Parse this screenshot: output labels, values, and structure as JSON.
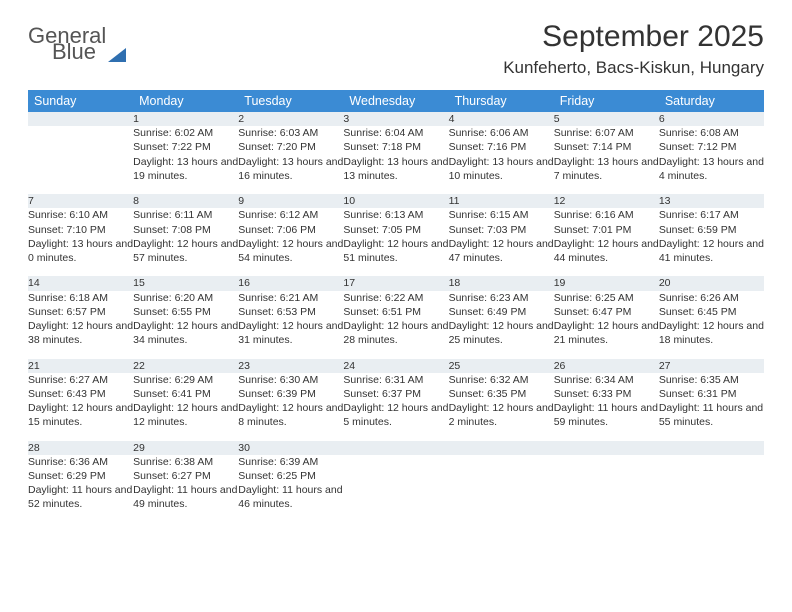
{
  "logo": {
    "line1": "General",
    "line2": "Blue"
  },
  "title": "September 2025",
  "location": "Kunfeherto, Bacs-Kiskun, Hungary",
  "colors": {
    "header_bg": "#3b8bd4",
    "header_text": "#ffffff",
    "daynum_bg": "#e9eef2",
    "daynum_text": "#5b6b78",
    "border": "#b9c5cf",
    "body_text": "#333333",
    "logo_gray": "#555555",
    "logo_blue": "#3b7fc4"
  },
  "weekdays": [
    "Sunday",
    "Monday",
    "Tuesday",
    "Wednesday",
    "Thursday",
    "Friday",
    "Saturday"
  ],
  "weeks": [
    {
      "nums": [
        "",
        "1",
        "2",
        "3",
        "4",
        "5",
        "6"
      ],
      "cells": [
        {
          "sunrise": "",
          "sunset": "",
          "daylight": ""
        },
        {
          "sunrise": "Sunrise: 6:02 AM",
          "sunset": "Sunset: 7:22 PM",
          "daylight": "Daylight: 13 hours and 19 minutes."
        },
        {
          "sunrise": "Sunrise: 6:03 AM",
          "sunset": "Sunset: 7:20 PM",
          "daylight": "Daylight: 13 hours and 16 minutes."
        },
        {
          "sunrise": "Sunrise: 6:04 AM",
          "sunset": "Sunset: 7:18 PM",
          "daylight": "Daylight: 13 hours and 13 minutes."
        },
        {
          "sunrise": "Sunrise: 6:06 AM",
          "sunset": "Sunset: 7:16 PM",
          "daylight": "Daylight: 13 hours and 10 minutes."
        },
        {
          "sunrise": "Sunrise: 6:07 AM",
          "sunset": "Sunset: 7:14 PM",
          "daylight": "Daylight: 13 hours and 7 minutes."
        },
        {
          "sunrise": "Sunrise: 6:08 AM",
          "sunset": "Sunset: 7:12 PM",
          "daylight": "Daylight: 13 hours and 4 minutes."
        }
      ]
    },
    {
      "nums": [
        "7",
        "8",
        "9",
        "10",
        "11",
        "12",
        "13"
      ],
      "cells": [
        {
          "sunrise": "Sunrise: 6:10 AM",
          "sunset": "Sunset: 7:10 PM",
          "daylight": "Daylight: 13 hours and 0 minutes."
        },
        {
          "sunrise": "Sunrise: 6:11 AM",
          "sunset": "Sunset: 7:08 PM",
          "daylight": "Daylight: 12 hours and 57 minutes."
        },
        {
          "sunrise": "Sunrise: 6:12 AM",
          "sunset": "Sunset: 7:06 PM",
          "daylight": "Daylight: 12 hours and 54 minutes."
        },
        {
          "sunrise": "Sunrise: 6:13 AM",
          "sunset": "Sunset: 7:05 PM",
          "daylight": "Daylight: 12 hours and 51 minutes."
        },
        {
          "sunrise": "Sunrise: 6:15 AM",
          "sunset": "Sunset: 7:03 PM",
          "daylight": "Daylight: 12 hours and 47 minutes."
        },
        {
          "sunrise": "Sunrise: 6:16 AM",
          "sunset": "Sunset: 7:01 PM",
          "daylight": "Daylight: 12 hours and 44 minutes."
        },
        {
          "sunrise": "Sunrise: 6:17 AM",
          "sunset": "Sunset: 6:59 PM",
          "daylight": "Daylight: 12 hours and 41 minutes."
        }
      ]
    },
    {
      "nums": [
        "14",
        "15",
        "16",
        "17",
        "18",
        "19",
        "20"
      ],
      "cells": [
        {
          "sunrise": "Sunrise: 6:18 AM",
          "sunset": "Sunset: 6:57 PM",
          "daylight": "Daylight: 12 hours and 38 minutes."
        },
        {
          "sunrise": "Sunrise: 6:20 AM",
          "sunset": "Sunset: 6:55 PM",
          "daylight": "Daylight: 12 hours and 34 minutes."
        },
        {
          "sunrise": "Sunrise: 6:21 AM",
          "sunset": "Sunset: 6:53 PM",
          "daylight": "Daylight: 12 hours and 31 minutes."
        },
        {
          "sunrise": "Sunrise: 6:22 AM",
          "sunset": "Sunset: 6:51 PM",
          "daylight": "Daylight: 12 hours and 28 minutes."
        },
        {
          "sunrise": "Sunrise: 6:23 AM",
          "sunset": "Sunset: 6:49 PM",
          "daylight": "Daylight: 12 hours and 25 minutes."
        },
        {
          "sunrise": "Sunrise: 6:25 AM",
          "sunset": "Sunset: 6:47 PM",
          "daylight": "Daylight: 12 hours and 21 minutes."
        },
        {
          "sunrise": "Sunrise: 6:26 AM",
          "sunset": "Sunset: 6:45 PM",
          "daylight": "Daylight: 12 hours and 18 minutes."
        }
      ]
    },
    {
      "nums": [
        "21",
        "22",
        "23",
        "24",
        "25",
        "26",
        "27"
      ],
      "cells": [
        {
          "sunrise": "Sunrise: 6:27 AM",
          "sunset": "Sunset: 6:43 PM",
          "daylight": "Daylight: 12 hours and 15 minutes."
        },
        {
          "sunrise": "Sunrise: 6:29 AM",
          "sunset": "Sunset: 6:41 PM",
          "daylight": "Daylight: 12 hours and 12 minutes."
        },
        {
          "sunrise": "Sunrise: 6:30 AM",
          "sunset": "Sunset: 6:39 PM",
          "daylight": "Daylight: 12 hours and 8 minutes."
        },
        {
          "sunrise": "Sunrise: 6:31 AM",
          "sunset": "Sunset: 6:37 PM",
          "daylight": "Daylight: 12 hours and 5 minutes."
        },
        {
          "sunrise": "Sunrise: 6:32 AM",
          "sunset": "Sunset: 6:35 PM",
          "daylight": "Daylight: 12 hours and 2 minutes."
        },
        {
          "sunrise": "Sunrise: 6:34 AM",
          "sunset": "Sunset: 6:33 PM",
          "daylight": "Daylight: 11 hours and 59 minutes."
        },
        {
          "sunrise": "Sunrise: 6:35 AM",
          "sunset": "Sunset: 6:31 PM",
          "daylight": "Daylight: 11 hours and 55 minutes."
        }
      ]
    },
    {
      "nums": [
        "28",
        "29",
        "30",
        "",
        "",
        "",
        ""
      ],
      "cells": [
        {
          "sunrise": "Sunrise: 6:36 AM",
          "sunset": "Sunset: 6:29 PM",
          "daylight": "Daylight: 11 hours and 52 minutes."
        },
        {
          "sunrise": "Sunrise: 6:38 AM",
          "sunset": "Sunset: 6:27 PM",
          "daylight": "Daylight: 11 hours and 49 minutes."
        },
        {
          "sunrise": "Sunrise: 6:39 AM",
          "sunset": "Sunset: 6:25 PM",
          "daylight": "Daylight: 11 hours and 46 minutes."
        },
        {
          "sunrise": "",
          "sunset": "",
          "daylight": ""
        },
        {
          "sunrise": "",
          "sunset": "",
          "daylight": ""
        },
        {
          "sunrise": "",
          "sunset": "",
          "daylight": ""
        },
        {
          "sunrise": "",
          "sunset": "",
          "daylight": ""
        }
      ]
    }
  ]
}
